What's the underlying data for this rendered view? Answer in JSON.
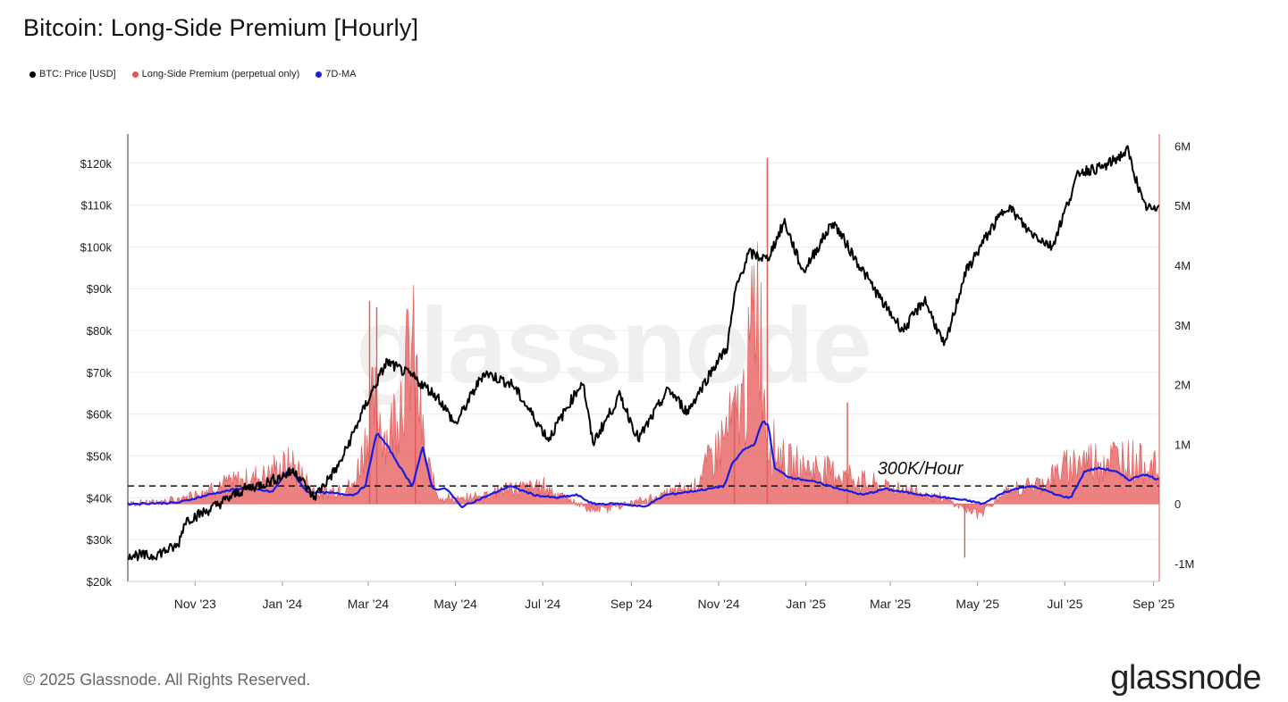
{
  "title": "Bitcoin: Long-Side Premium [Hourly]",
  "legend": [
    {
      "label": "BTC: Price [USD]",
      "color": "#000000"
    },
    {
      "label": "Long-Side Premium (perpetual only)",
      "color": "#e05a5a"
    },
    {
      "label": "7D-MA",
      "color": "#1a1ae6"
    }
  ],
  "watermark": "glassnode",
  "footer": "© 2025 Glassnode. All Rights Reserved.",
  "brand": "glassnode",
  "chart_data": {
    "type": "line",
    "title": "Bitcoin: Long-Side Premium [Hourly]",
    "x_ticks": [
      "Nov '23",
      "Jan '24",
      "Mar '24",
      "May '24",
      "Jul '24",
      "Sep '24",
      "Nov '24",
      "Jan '25",
      "Mar '25",
      "May '25",
      "Jul '25",
      "Sep '25"
    ],
    "y_left_ticks": [
      "$20k",
      "$30k",
      "$40k",
      "$50k",
      "$60k",
      "$70k",
      "$80k",
      "$90k",
      "$100k",
      "$110k",
      "$120k"
    ],
    "y_left_lim": [
      20000,
      127000
    ],
    "y_right_ticks": [
      "-1M",
      "0",
      "1M",
      "2M",
      "3M",
      "4M",
      "5M",
      "6M"
    ],
    "y_right_lim": [
      -1300000,
      6200000
    ],
    "annotation": {
      "text": "300K/Hour",
      "value": 300000,
      "style": "dashed"
    },
    "x_range": [
      "2023-09-15",
      "2025-09-05"
    ],
    "series": [
      {
        "name": "BTC: Price [USD]",
        "axis": "left",
        "color": "#000000",
        "x": [
          "2023-09-15",
          "2023-10-01",
          "2023-10-20",
          "2023-10-25",
          "2023-11-10",
          "2023-12-05",
          "2023-12-20",
          "2024-01-10",
          "2024-01-23",
          "2024-02-10",
          "2024-02-28",
          "2024-03-14",
          "2024-04-01",
          "2024-04-19",
          "2024-05-01",
          "2024-05-21",
          "2024-06-10",
          "2024-07-05",
          "2024-07-29",
          "2024-08-05",
          "2024-08-24",
          "2024-09-06",
          "2024-09-27",
          "2024-10-10",
          "2024-10-29",
          "2024-11-07",
          "2024-11-13",
          "2024-11-22",
          "2024-12-05",
          "2024-12-17",
          "2024-12-30",
          "2025-01-20",
          "2025-02-03",
          "2025-02-25",
          "2025-03-10",
          "2025-03-25",
          "2025-04-08",
          "2025-04-22",
          "2025-05-08",
          "2025-05-22",
          "2025-06-05",
          "2025-06-22",
          "2025-07-11",
          "2025-07-28",
          "2025-08-14",
          "2025-08-25",
          "2025-09-02",
          "2025-09-05"
        ],
        "y": [
          26500,
          26000,
          28500,
          34500,
          37000,
          42000,
          43500,
          46500,
          40000,
          48000,
          62000,
          72500,
          69000,
          64000,
          57500,
          70000,
          67000,
          54000,
          68000,
          53000,
          64500,
          54000,
          66000,
          60500,
          71500,
          76000,
          90000,
          98500,
          97000,
          106000,
          94000,
          106000,
          98000,
          86000,
          80000,
          87500,
          76000,
          93500,
          103000,
          110000,
          104000,
          100000,
          118000,
          119000,
          123000,
          110000,
          108500,
          111000
        ]
      },
      {
        "name": "Long-Side Premium (perpetual only)",
        "axis": "right",
        "color": "#e05a5a",
        "kind": "area",
        "x": [
          "2023-09-15",
          "2023-10-20",
          "2023-11-15",
          "2023-12-10",
          "2024-01-08",
          "2024-01-25",
          "2024-02-20",
          "2024-03-05",
          "2024-03-15",
          "2024-04-01",
          "2024-04-10",
          "2024-04-20",
          "2024-05-05",
          "2024-06-01",
          "2024-07-01",
          "2024-08-05",
          "2024-09-10",
          "2024-10-15",
          "2024-11-10",
          "2024-11-20",
          "2024-11-28",
          "2024-12-05",
          "2024-12-20",
          "2025-01-20",
          "2025-02-20",
          "2025-03-15",
          "2025-04-10",
          "2025-05-01",
          "2025-05-20",
          "2025-06-15",
          "2025-07-10",
          "2025-07-20",
          "2025-08-10",
          "2025-08-28",
          "2025-09-05"
        ],
        "y": [
          0,
          50000,
          250000,
          350000,
          550000,
          150000,
          250000,
          1400000,
          900000,
          2200000,
          600000,
          100000,
          50000,
          200000,
          250000,
          -100000,
          50000,
          250000,
          1100000,
          1500000,
          3100000,
          900000,
          550000,
          450000,
          250000,
          200000,
          50000,
          -150000,
          150000,
          300000,
          600000,
          600000,
          650000,
          550000,
          450000
        ],
        "spikes": [
          {
            "x": "2024-03-02",
            "y": 3400000
          },
          {
            "x": "2024-03-07",
            "y": 3300000
          },
          {
            "x": "2024-04-03",
            "y": 1800000
          },
          {
            "x": "2024-11-12",
            "y": 1700000
          },
          {
            "x": "2024-12-05",
            "y": 5800000
          },
          {
            "x": "2025-01-30",
            "y": 1700000
          },
          {
            "x": "2025-04-22",
            "y": -900000
          }
        ]
      },
      {
        "name": "7D-MA",
        "axis": "right",
        "color": "#1a1ae6",
        "x": [
          "2023-09-15",
          "2023-10-20",
          "2023-11-15",
          "2023-12-05",
          "2023-12-25",
          "2024-01-06",
          "2024-01-18",
          "2024-02-05",
          "2024-02-20",
          "2024-02-28",
          "2024-03-07",
          "2024-03-15",
          "2024-03-25",
          "2024-04-01",
          "2024-04-08",
          "2024-04-15",
          "2024-04-25",
          "2024-05-05",
          "2024-05-25",
          "2024-06-08",
          "2024-06-25",
          "2024-07-10",
          "2024-07-25",
          "2024-08-05",
          "2024-08-25",
          "2024-09-10",
          "2024-09-25",
          "2024-10-10",
          "2024-10-25",
          "2024-11-05",
          "2024-11-10",
          "2024-11-18",
          "2024-11-26",
          "2024-12-02",
          "2024-12-06",
          "2024-12-10",
          "2024-12-20",
          "2025-01-01",
          "2025-01-10",
          "2025-01-25",
          "2025-02-10",
          "2025-02-25",
          "2025-03-10",
          "2025-03-25",
          "2025-04-10",
          "2025-04-25",
          "2025-05-05",
          "2025-05-20",
          "2025-06-05",
          "2025-06-15",
          "2025-06-25",
          "2025-07-05",
          "2025-07-15",
          "2025-07-25",
          "2025-08-05",
          "2025-08-15",
          "2025-08-25",
          "2025-09-05"
        ],
        "y": [
          0,
          20000,
          180000,
          270000,
          200000,
          600000,
          200000,
          180000,
          150000,
          300000,
          1200000,
          950000,
          550000,
          300000,
          950000,
          250000,
          250000,
          -50000,
          150000,
          300000,
          150000,
          100000,
          150000,
          0,
          0,
          -50000,
          150000,
          200000,
          250000,
          300000,
          650000,
          900000,
          1000000,
          1400000,
          1300000,
          600000,
          450000,
          400000,
          350000,
          250000,
          150000,
          250000,
          200000,
          150000,
          100000,
          50000,
          0,
          200000,
          300000,
          250000,
          150000,
          100000,
          550000,
          600000,
          550000,
          400000,
          500000,
          400000
        ]
      }
    ]
  }
}
